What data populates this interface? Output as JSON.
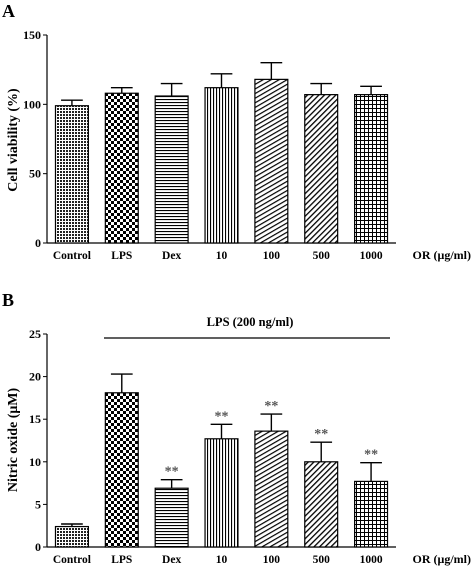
{
  "panels": [
    {
      "label": "A",
      "chart_data": {
        "type": "bar",
        "ylabel": "Cell viability (%)",
        "xlabel": "OR (μg/ml)",
        "ylim": [
          0,
          150
        ],
        "yticks": [
          0,
          50,
          100,
          150
        ],
        "categories": [
          "Control",
          "LPS",
          "Dex",
          "10",
          "100",
          "500",
          "1000"
        ],
        "values": [
          99,
          108,
          106,
          112,
          118,
          107,
          107
        ],
        "errors": [
          4,
          4,
          9,
          10,
          12,
          8,
          6
        ],
        "annotations": [
          "",
          "",
          "",
          "",
          "",
          "",
          ""
        ],
        "grid": false
      }
    },
    {
      "label": "B",
      "chart_data": {
        "type": "bar",
        "ylabel": "Nitric oxide (μM)",
        "xlabel": "OR (μg/ml)",
        "ylim": [
          0,
          25
        ],
        "yticks": [
          0,
          5,
          10,
          15,
          20,
          25
        ],
        "categories": [
          "Control",
          "LPS",
          "Dex",
          "10",
          "100",
          "500",
          "1000"
        ],
        "values": [
          2.4,
          18.1,
          6.9,
          12.7,
          13.6,
          10.0,
          7.7
        ],
        "errors": [
          0.3,
          2.2,
          1.0,
          1.7,
          2.0,
          2.3,
          2.2
        ],
        "annotations": [
          "",
          "",
          "**",
          "**",
          "**",
          "**",
          "**"
        ],
        "bracket_label": "LPS (200 ng/ml)",
        "grid": false
      }
    }
  ]
}
